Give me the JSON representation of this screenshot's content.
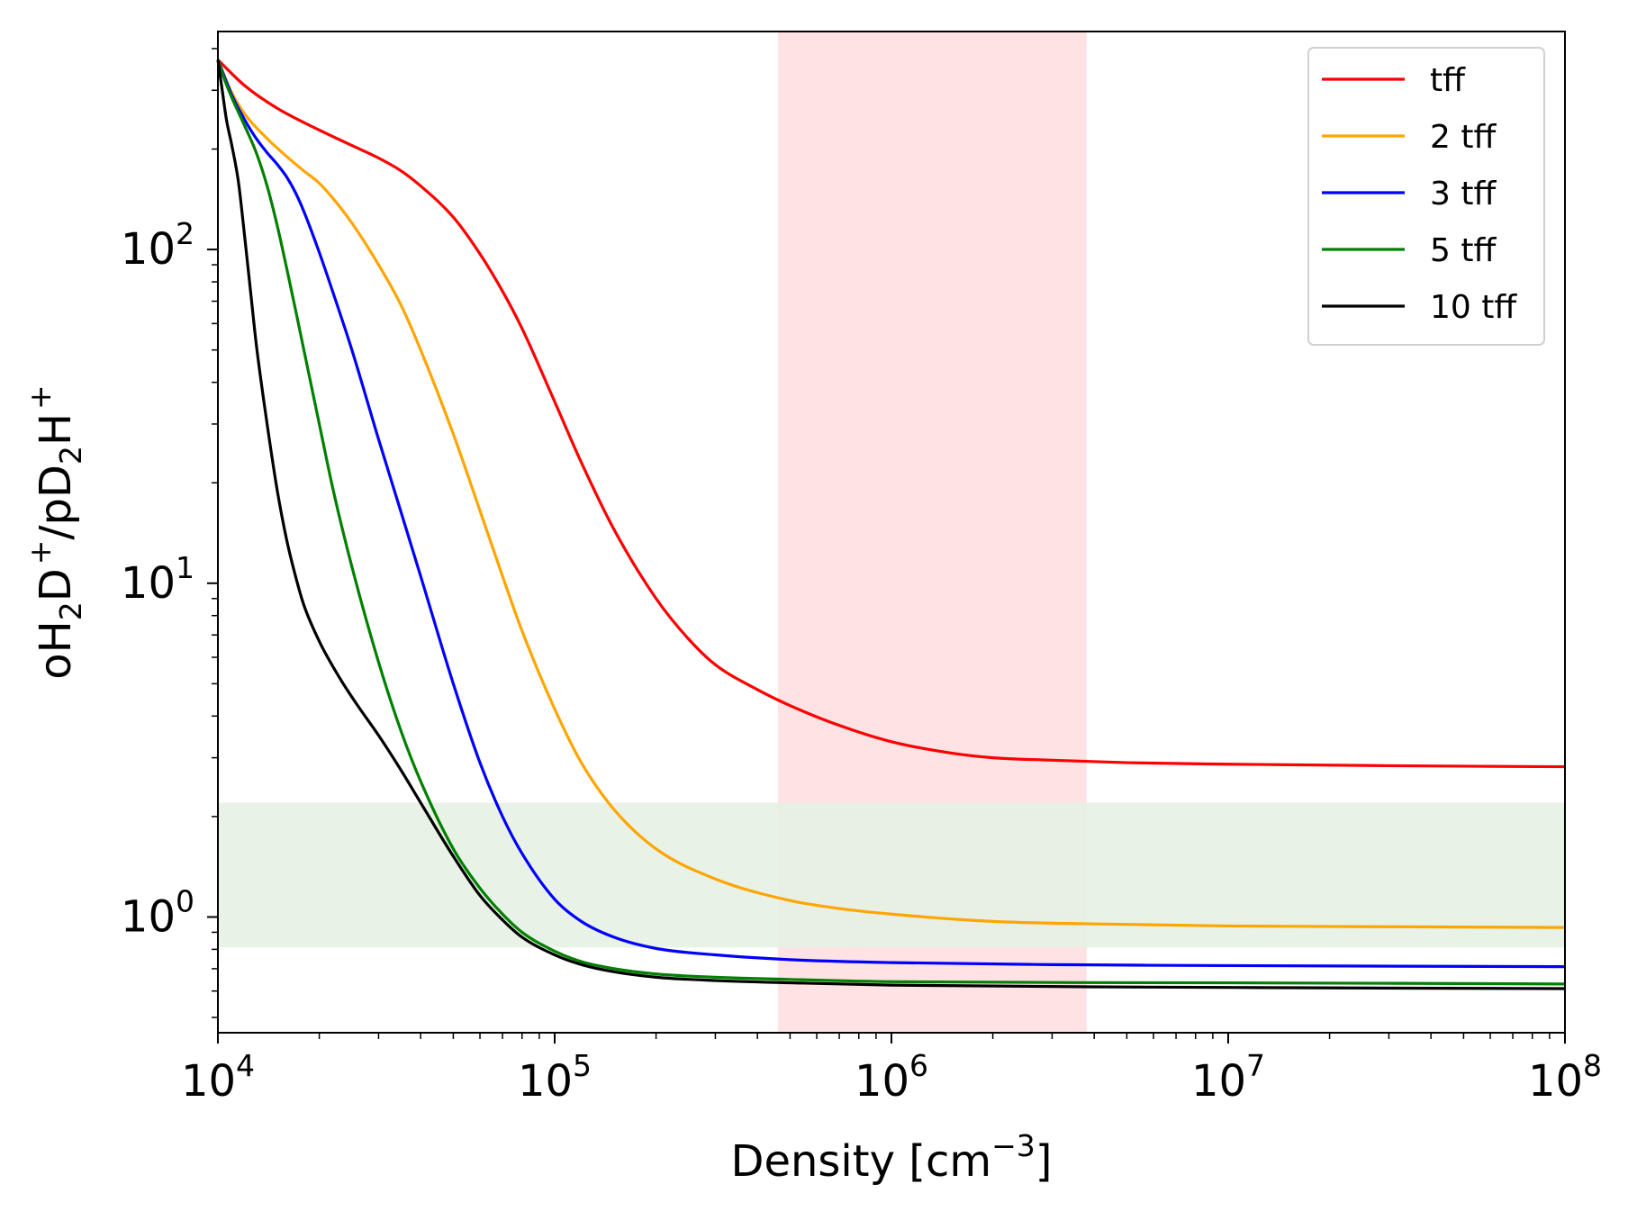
{
  "chart_data": {
    "type": "line",
    "title": "",
    "xlabel": "Density [cm",
    "xlabel_sup": "−3",
    "xlabel_end": "]",
    "ylabel": {
      "parts": [
        {
          "text": "oH",
          "sub": "2"
        },
        {
          "text": "D",
          "sup": "+"
        },
        {
          "text": "/pD",
          "sub": "2"
        },
        {
          "text": "H",
          "sup": "+"
        }
      ]
    },
    "xscale": "log",
    "yscale": "log",
    "xlim": [
      10000,
      100000000
    ],
    "ylim": [
      0.45,
      450
    ],
    "x_ticks": [
      {
        "value": 10000,
        "base": "10",
        "exp": "4"
      },
      {
        "value": 100000,
        "base": "10",
        "exp": "5"
      },
      {
        "value": 1000000,
        "base": "10",
        "exp": "6"
      },
      {
        "value": 10000000,
        "base": "10",
        "exp": "7"
      },
      {
        "value": 100000000,
        "base": "10",
        "exp": "8"
      }
    ],
    "y_ticks": [
      {
        "value": 1,
        "base": "10",
        "exp": "0"
      },
      {
        "value": 10,
        "base": "10",
        "exp": "1"
      },
      {
        "value": 100,
        "base": "10",
        "exp": "2"
      }
    ],
    "shaded_regions": [
      {
        "axis": "x",
        "from": 460000,
        "to": 3800000,
        "color": "#ffe2e4"
      },
      {
        "axis": "y",
        "from": 0.81,
        "to": 2.2,
        "color": "#e5f0e2",
        "opacity": 0.88
      }
    ],
    "legend_position": "top-right",
    "series": [
      {
        "name": "tff",
        "color": "#ff0000",
        "points": [
          [
            10000,
            370
          ],
          [
            12000,
            310
          ],
          [
            15000,
            265
          ],
          [
            20000,
            228
          ],
          [
            25000,
            205
          ],
          [
            30000,
            188
          ],
          [
            35000,
            172
          ],
          [
            40000,
            155
          ],
          [
            50000,
            125
          ],
          [
            60000,
            97
          ],
          [
            70000,
            75
          ],
          [
            80000,
            58
          ],
          [
            100000,
            35
          ],
          [
            120000,
            23
          ],
          [
            150000,
            14.5
          ],
          [
            200000,
            9.0
          ],
          [
            250000,
            6.8
          ],
          [
            300000,
            5.7
          ],
          [
            400000,
            4.8
          ],
          [
            500000,
            4.3
          ],
          [
            700000,
            3.75
          ],
          [
            1000000,
            3.35
          ],
          [
            1500000,
            3.1
          ],
          [
            2000000,
            3.0
          ],
          [
            3000000,
            2.95
          ],
          [
            5000000,
            2.9
          ],
          [
            10000000,
            2.87
          ],
          [
            30000000,
            2.84
          ],
          [
            100000000,
            2.82
          ]
        ]
      },
      {
        "name": "2 tff",
        "color": "#ffa500",
        "points": [
          [
            10000,
            370
          ],
          [
            11000,
            295
          ],
          [
            12000,
            255
          ],
          [
            14000,
            215
          ],
          [
            16000,
            190
          ],
          [
            18000,
            172
          ],
          [
            20000,
            158
          ],
          [
            22000,
            142
          ],
          [
            25000,
            120
          ],
          [
            30000,
            90
          ],
          [
            35000,
            68
          ],
          [
            40000,
            50
          ],
          [
            50000,
            28
          ],
          [
            60000,
            16.5
          ],
          [
            70000,
            10.5
          ],
          [
            80000,
            7.2
          ],
          [
            100000,
            4.2
          ],
          [
            120000,
            2.9
          ],
          [
            150000,
            2.1
          ],
          [
            200000,
            1.6
          ],
          [
            300000,
            1.3
          ],
          [
            500000,
            1.12
          ],
          [
            700000,
            1.06
          ],
          [
            1000000,
            1.02
          ],
          [
            2000000,
            0.97
          ],
          [
            5000000,
            0.95
          ],
          [
            10000000,
            0.94
          ],
          [
            30000000,
            0.935
          ],
          [
            100000000,
            0.93
          ]
        ]
      },
      {
        "name": "3 tff",
        "color": "#0000ff",
        "points": [
          [
            10000,
            370
          ],
          [
            11000,
            290
          ],
          [
            12000,
            245
          ],
          [
            13000,
            215
          ],
          [
            14000,
            195
          ],
          [
            15000,
            180
          ],
          [
            16000,
            165
          ],
          [
            17000,
            148
          ],
          [
            18000,
            130
          ],
          [
            20000,
            98
          ],
          [
            22000,
            74
          ],
          [
            25000,
            50
          ],
          [
            30000,
            27
          ],
          [
            35000,
            16.3
          ],
          [
            40000,
            10.5
          ],
          [
            50000,
            5.0
          ],
          [
            60000,
            2.9
          ],
          [
            70000,
            2.0
          ],
          [
            80000,
            1.55
          ],
          [
            100000,
            1.13
          ],
          [
            120000,
            0.97
          ],
          [
            150000,
            0.87
          ],
          [
            200000,
            0.805
          ],
          [
            300000,
            0.77
          ],
          [
            500000,
            0.745
          ],
          [
            1000000,
            0.73
          ],
          [
            3000000,
            0.72
          ],
          [
            10000000,
            0.715
          ],
          [
            100000000,
            0.71
          ]
        ]
      },
      {
        "name": "5 tff",
        "color": "#008000",
        "points": [
          [
            10000,
            370
          ],
          [
            10500,
            320
          ],
          [
            11000,
            285
          ],
          [
            12000,
            235
          ],
          [
            13000,
            195
          ],
          [
            14000,
            155
          ],
          [
            15000,
            118
          ],
          [
            16000,
            88
          ],
          [
            17000,
            66
          ],
          [
            18000,
            50
          ],
          [
            20000,
            30
          ],
          [
            22000,
            19
          ],
          [
            25000,
            11.2
          ],
          [
            30000,
            5.8
          ],
          [
            35000,
            3.6
          ],
          [
            40000,
            2.55
          ],
          [
            50000,
            1.6
          ],
          [
            60000,
            1.22
          ],
          [
            70000,
            1.02
          ],
          [
            80000,
            0.9
          ],
          [
            100000,
            0.79
          ],
          [
            120000,
            0.735
          ],
          [
            150000,
            0.7
          ],
          [
            200000,
            0.675
          ],
          [
            300000,
            0.66
          ],
          [
            500000,
            0.65
          ],
          [
            1000000,
            0.64
          ],
          [
            10000000,
            0.635
          ],
          [
            100000000,
            0.63
          ]
        ]
      },
      {
        "name": "10 tff",
        "color": "#000000",
        "points": [
          [
            10000,
            370
          ],
          [
            10300,
            300
          ],
          [
            10600,
            245
          ],
          [
            11000,
            205
          ],
          [
            11500,
            160
          ],
          [
            12000,
            110
          ],
          [
            12500,
            75
          ],
          [
            13000,
            52
          ],
          [
            14000,
            30
          ],
          [
            15000,
            19
          ],
          [
            16000,
            13.5
          ],
          [
            17000,
            10.5
          ],
          [
            18000,
            8.6
          ],
          [
            20000,
            6.7
          ],
          [
            23000,
            5.2
          ],
          [
            26000,
            4.3
          ],
          [
            30000,
            3.5
          ],
          [
            35000,
            2.75
          ],
          [
            40000,
            2.2
          ],
          [
            50000,
            1.52
          ],
          [
            60000,
            1.16
          ],
          [
            70000,
            0.98
          ],
          [
            80000,
            0.87
          ],
          [
            100000,
            0.77
          ],
          [
            120000,
            0.72
          ],
          [
            150000,
            0.685
          ],
          [
            200000,
            0.66
          ],
          [
            300000,
            0.645
          ],
          [
            500000,
            0.635
          ],
          [
            1000000,
            0.625
          ],
          [
            10000000,
            0.615
          ],
          [
            100000000,
            0.61
          ]
        ]
      }
    ]
  }
}
